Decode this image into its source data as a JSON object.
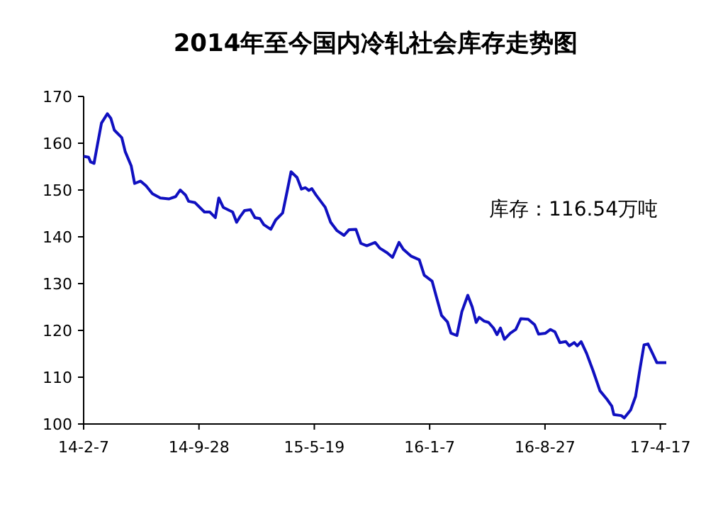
{
  "chart_data": {
    "type": "line",
    "title": "2014年至今国内冷轧社会库存走势图",
    "annotations": [
      "库存：116.54万吨"
    ],
    "x": [
      "2014-02-07",
      "2014-02-17",
      "2014-02-21",
      "2014-02-28",
      "2014-03-06",
      "2014-03-15",
      "2014-03-27",
      "2014-04-03",
      "2014-04-10",
      "2014-04-25",
      "2014-05-02",
      "2014-05-14",
      "2014-05-21",
      "2014-06-02",
      "2014-06-13",
      "2014-06-26",
      "2014-07-12",
      "2014-07-29",
      "2014-08-12",
      "2014-08-21",
      "2014-09-01",
      "2014-09-07",
      "2014-09-20",
      "2014-10-09",
      "2014-10-20",
      "2014-10-31",
      "2014-11-07",
      "2014-11-16",
      "2014-11-29",
      "2014-12-05",
      "2014-12-13",
      "2014-12-20",
      "2014-12-29",
      "2015-01-10",
      "2015-01-19",
      "2015-01-29",
      "2015-02-06",
      "2015-02-20",
      "2015-03-02",
      "2015-03-16",
      "2015-03-25",
      "2015-04-02",
      "2015-04-14",
      "2015-04-23",
      "2015-05-01",
      "2015-05-08",
      "2015-05-14",
      "2015-05-22",
      "2015-06-10",
      "2015-06-21",
      "2015-07-04",
      "2015-07-18",
      "2015-07-28",
      "2015-08-11",
      "2015-08-21",
      "2015-09-02",
      "2015-09-19",
      "2015-09-28",
      "2015-10-13",
      "2015-10-24",
      "2015-11-06",
      "2015-11-15",
      "2015-11-30",
      "2015-12-17",
      "2015-12-27",
      "2016-01-12",
      "2016-01-21",
      "2016-01-31",
      "2016-02-12",
      "2016-02-19",
      "2016-03-02",
      "2016-03-12",
      "2016-03-24",
      "2016-04-02",
      "2016-04-10",
      "2016-04-16",
      "2016-04-26",
      "2016-05-05",
      "2016-05-15",
      "2016-05-22",
      "2016-05-29",
      "2016-06-06",
      "2016-06-18",
      "2016-06-29",
      "2016-07-09",
      "2016-07-24",
      "2016-08-06",
      "2016-08-14",
      "2016-08-28",
      "2016-09-07",
      "2016-09-16",
      "2016-09-26",
      "2016-10-08",
      "2016-10-15",
      "2016-10-25",
      "2016-10-31",
      "2016-11-08",
      "2016-11-19",
      "2016-12-02",
      "2016-12-16",
      "2016-12-30",
      "2017-01-09",
      "2017-01-13",
      "2017-01-28",
      "2017-02-03",
      "2017-02-16",
      "2017-02-26",
      "2017-03-07",
      "2017-03-15",
      "2017-03-23",
      "2017-04-02",
      "2017-04-10",
      "2017-04-29"
    ],
    "series": [
      {
        "color": "#1010c0",
        "values": [
          157.2,
          157.0,
          156.0,
          155.7,
          159.2,
          164.3,
          166.3,
          165.3,
          162.8,
          161.2,
          158.2,
          155.2,
          151.4,
          151.9,
          150.9,
          149.2,
          148.3,
          148.1,
          148.6,
          150.0,
          148.9,
          147.6,
          147.3,
          145.3,
          145.3,
          144.1,
          148.3,
          146.3,
          145.6,
          145.3,
          143.1,
          144.3,
          145.6,
          145.8,
          144.1,
          143.9,
          142.6,
          141.6,
          143.6,
          145.1,
          149.7,
          153.9,
          152.7,
          150.2,
          150.5,
          149.9,
          150.3,
          149.0,
          146.3,
          143.1,
          141.3,
          140.3,
          141.5,
          141.6,
          138.6,
          138.1,
          138.8,
          137.6,
          136.6,
          135.6,
          138.8,
          137.3,
          135.9,
          135.1,
          131.8,
          130.5,
          127.0,
          123.2,
          121.8,
          119.4,
          118.9,
          124.0,
          127.5,
          125.0,
          121.7,
          122.8,
          122.0,
          121.7,
          120.5,
          119.1,
          120.5,
          118.1,
          119.4,
          120.2,
          122.5,
          122.4,
          121.2,
          119.2,
          119.4,
          120.2,
          119.7,
          117.4,
          117.6,
          116.7,
          117.4,
          116.7,
          117.6,
          115.1,
          111.4,
          107.1,
          105.3,
          103.8,
          102.0,
          101.8,
          101.3,
          103.0,
          105.9,
          111.9,
          116.9,
          117.1,
          114.9,
          113.1,
          113.1
        ]
      }
    ],
    "xlim": [
      "2014-02-07",
      "2017-04-29"
    ],
    "xticks": [
      {
        "value": "2014-02-07",
        "label": "14-2-7"
      },
      {
        "value": "2014-09-28",
        "label": "14-9-28"
      },
      {
        "value": "2015-05-19",
        "label": "15-5-19"
      },
      {
        "value": "2016-01-07",
        "label": "16-1-7"
      },
      {
        "value": "2016-08-27",
        "label": "16-8-27"
      },
      {
        "value": "2017-04-17",
        "label": "17-4-17"
      }
    ],
    "ylim": [
      100,
      170
    ],
    "yticks": [
      100,
      110,
      120,
      130,
      140,
      150,
      160,
      170
    ],
    "grid": false,
    "marker": "none",
    "line_style": "solid"
  }
}
